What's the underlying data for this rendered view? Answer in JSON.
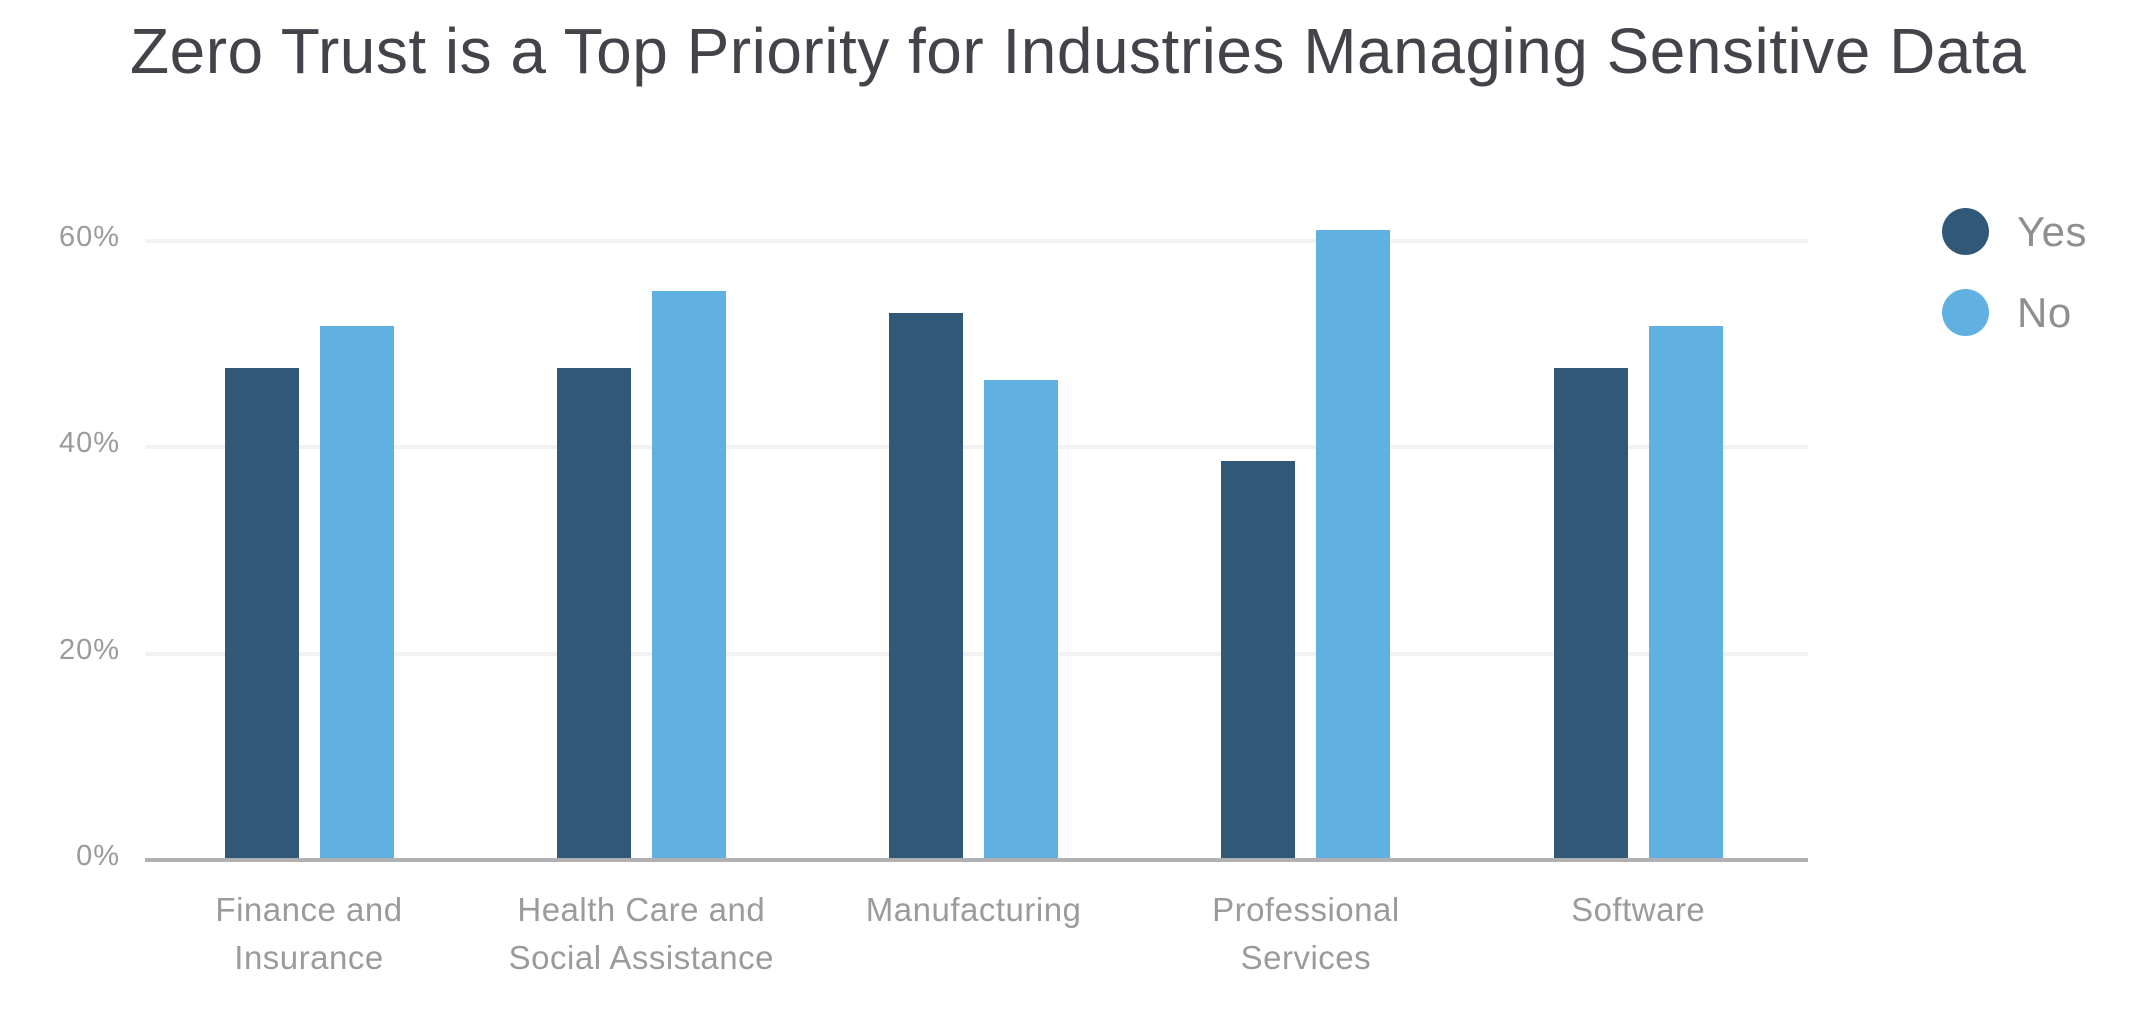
{
  "colors": {
    "background": "#ffffff",
    "series_yes": "#325878",
    "series_no": "#60b1e1",
    "title_text": "#424449",
    "tick_text": "#9b9b9b",
    "category_text": "#9b9b9b",
    "legend_text": "#8f8f8f",
    "gridline": "#f2f2f2",
    "baseline": "#b1b1b4"
  },
  "chart_data": {
    "type": "bar",
    "title": "Zero Trust is a Top Priority for Industries Managing Sensitive Data",
    "categories": [
      "Finance and\nInsurance",
      "Health Care and\nSocial Assistance",
      "Manufacturing",
      "Professional\nServices",
      "Software"
    ],
    "series": [
      {
        "name": "Yes",
        "color": "#325878",
        "values": [
          47.7,
          47.7,
          53.0,
          38.7,
          47.7
        ]
      },
      {
        "name": "No",
        "color": "#60b1e1",
        "values": [
          51.8,
          55.2,
          46.5,
          61.1,
          51.8
        ]
      }
    ],
    "xlabel": "",
    "ylabel": "",
    "y_axis": {
      "tick_labels": [
        "0%",
        "20%",
        "40%",
        "60%"
      ],
      "tick_values": [
        0,
        20,
        40,
        60
      ],
      "ylim": [
        0,
        65
      ],
      "unit": "%"
    },
    "grid": true,
    "legend_position": "right",
    "legend_labels": [
      "Yes",
      "No"
    ]
  }
}
